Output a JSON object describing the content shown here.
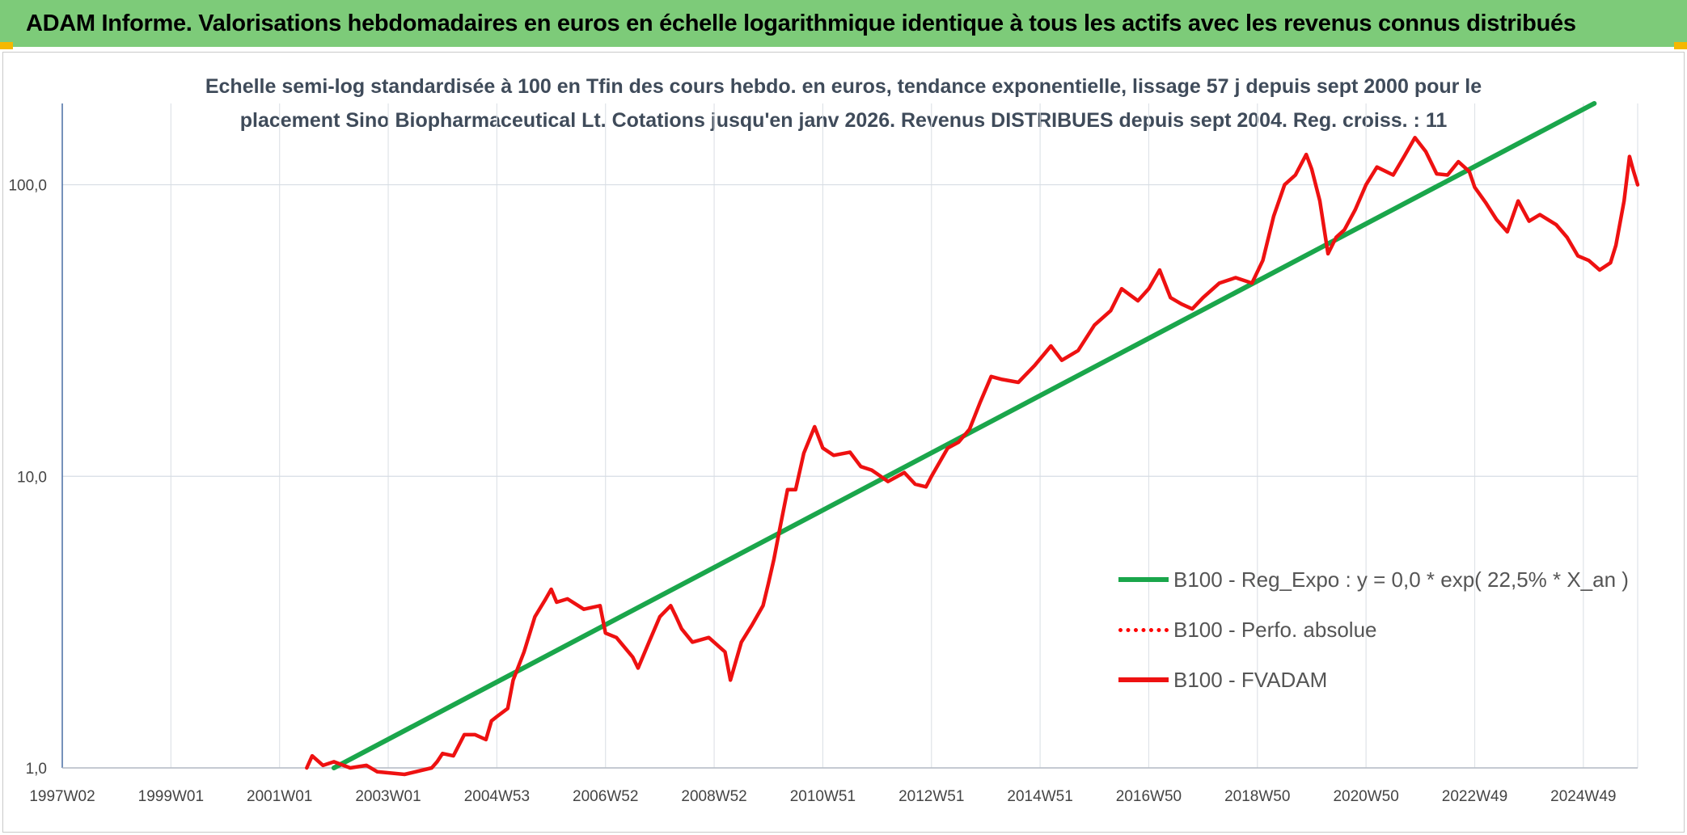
{
  "header": {
    "title": "ADAM Informe. Valorisations hebdomadaires en euros en échelle logarithmique identique à tous les actifs avec les revenus connus distribués"
  },
  "chart_data": {
    "type": "line",
    "title_line1": "Echelle semi-log standardisée à 100 en Tfin des cours hebdo. en euros, tendance exponentielle, lissage 57 j depuis sept 2000 pour le",
    "title_line2": "placement Sino Biopharmaceutical Lt. Cotations jusqu'en janv 2026. Revenus DISTRIBUES depuis sept 2004. Reg. croiss. : 11",
    "y_scale": "log",
    "ylim": [
      1,
      190
    ],
    "y_ticks": [
      {
        "value": 1,
        "label": "1,0"
      },
      {
        "value": 10,
        "label": "10,0"
      },
      {
        "value": 100,
        "label": "100,0"
      }
    ],
    "xlim": [
      1997.0,
      2026.0
    ],
    "x_ticks": [
      {
        "value": 1997.0,
        "label": "1997W02"
      },
      {
        "value": 1999.0,
        "label": "1999W01"
      },
      {
        "value": 2001.0,
        "label": "2001W01"
      },
      {
        "value": 2003.0,
        "label": "2003W01"
      },
      {
        "value": 2005.0,
        "label": "2004W53"
      },
      {
        "value": 2007.0,
        "label": "2006W52"
      },
      {
        "value": 2009.0,
        "label": "2008W52"
      },
      {
        "value": 2011.0,
        "label": "2010W51"
      },
      {
        "value": 2013.0,
        "label": "2012W51"
      },
      {
        "value": 2015.0,
        "label": "2014W51"
      },
      {
        "value": 2017.0,
        "label": "2016W50"
      },
      {
        "value": 2019.0,
        "label": "2018W50"
      },
      {
        "value": 2021.0,
        "label": "2020W50"
      },
      {
        "value": 2023.0,
        "label": "2022W49"
      },
      {
        "value": 2025.0,
        "label": "2024W49"
      }
    ],
    "legend_position": "bottom-right",
    "grid": true,
    "series": [
      {
        "name": "B100 - Reg_Expo : y = 0,0 * exp( 22,5% *  X_an )",
        "color": "#1aa64b",
        "style": "solid",
        "points": [
          [
            2002.0,
            1.0
          ],
          [
            2025.2,
            190.0
          ]
        ]
      },
      {
        "name": "B100 - Perfo. absolue",
        "color": "#ff0000",
        "style": "dotted",
        "points": []
      },
      {
        "name": "B100 - FVADAM",
        "color": "#ee1111",
        "style": "solid",
        "points": [
          [
            2001.5,
            1.0
          ],
          [
            2001.6,
            1.1
          ],
          [
            2001.8,
            1.02
          ],
          [
            2002.0,
            1.05
          ],
          [
            2002.3,
            1.0
          ],
          [
            2002.6,
            1.02
          ],
          [
            2002.8,
            0.97
          ],
          [
            2003.3,
            0.95
          ],
          [
            2003.8,
            1.0
          ],
          [
            2003.9,
            1.05
          ],
          [
            2004.0,
            1.12
          ],
          [
            2004.2,
            1.1
          ],
          [
            2004.4,
            1.3
          ],
          [
            2004.6,
            1.3
          ],
          [
            2004.8,
            1.25
          ],
          [
            2004.9,
            1.45
          ],
          [
            2005.0,
            1.5
          ],
          [
            2005.2,
            1.6
          ],
          [
            2005.3,
            2.0
          ],
          [
            2005.5,
            2.5
          ],
          [
            2005.7,
            3.3
          ],
          [
            2005.9,
            3.8
          ],
          [
            2006.0,
            4.1
          ],
          [
            2006.1,
            3.7
          ],
          [
            2006.3,
            3.8
          ],
          [
            2006.6,
            3.5
          ],
          [
            2006.9,
            3.6
          ],
          [
            2007.0,
            2.9
          ],
          [
            2007.2,
            2.8
          ],
          [
            2007.5,
            2.4
          ],
          [
            2007.6,
            2.2
          ],
          [
            2007.8,
            2.7
          ],
          [
            2008.0,
            3.3
          ],
          [
            2008.2,
            3.6
          ],
          [
            2008.3,
            3.3
          ],
          [
            2008.4,
            3.0
          ],
          [
            2008.6,
            2.7
          ],
          [
            2008.9,
            2.8
          ],
          [
            2009.2,
            2.5
          ],
          [
            2009.3,
            2.0
          ],
          [
            2009.5,
            2.7
          ],
          [
            2009.7,
            3.1
          ],
          [
            2009.9,
            3.6
          ],
          [
            2010.0,
            4.3
          ],
          [
            2010.1,
            5.2
          ],
          [
            2010.2,
            6.5
          ],
          [
            2010.35,
            9.0
          ],
          [
            2010.5,
            9.0
          ],
          [
            2010.65,
            12.0
          ],
          [
            2010.85,
            14.8
          ],
          [
            2011.0,
            12.5
          ],
          [
            2011.2,
            11.8
          ],
          [
            2011.5,
            12.1
          ],
          [
            2011.7,
            10.8
          ],
          [
            2011.9,
            10.5
          ],
          [
            2012.0,
            10.2
          ],
          [
            2012.2,
            9.6
          ],
          [
            2012.5,
            10.3
          ],
          [
            2012.7,
            9.4
          ],
          [
            2012.9,
            9.2
          ],
          [
            2013.0,
            10.0
          ],
          [
            2013.3,
            12.5
          ],
          [
            2013.5,
            13.1
          ],
          [
            2013.7,
            14.5
          ],
          [
            2013.9,
            18.0
          ],
          [
            2014.1,
            22.0
          ],
          [
            2014.3,
            21.5
          ],
          [
            2014.6,
            21.0
          ],
          [
            2014.9,
            24.0
          ],
          [
            2015.2,
            28.0
          ],
          [
            2015.4,
            25.0
          ],
          [
            2015.7,
            27.0
          ],
          [
            2016.0,
            33.0
          ],
          [
            2016.3,
            37.0
          ],
          [
            2016.5,
            44.0
          ],
          [
            2016.8,
            40.0
          ],
          [
            2017.0,
            44.0
          ],
          [
            2017.2,
            51.0
          ],
          [
            2017.4,
            41.0
          ],
          [
            2017.6,
            39.0
          ],
          [
            2017.8,
            37.5
          ],
          [
            2018.0,
            41.0
          ],
          [
            2018.3,
            46.0
          ],
          [
            2018.6,
            48.0
          ],
          [
            2018.9,
            46.0
          ],
          [
            2019.1,
            55.0
          ],
          [
            2019.3,
            78.0
          ],
          [
            2019.5,
            100.0
          ],
          [
            2019.7,
            108.0
          ],
          [
            2019.9,
            127.0
          ],
          [
            2020.0,
            113.0
          ],
          [
            2020.15,
            88.0
          ],
          [
            2020.3,
            58.0
          ],
          [
            2020.45,
            66.0
          ],
          [
            2020.6,
            70.0
          ],
          [
            2020.8,
            82.0
          ],
          [
            2021.0,
            100.0
          ],
          [
            2021.2,
            115.0
          ],
          [
            2021.5,
            108.0
          ],
          [
            2021.7,
            125.0
          ],
          [
            2021.9,
            145.0
          ],
          [
            2022.1,
            130.0
          ],
          [
            2022.3,
            109.0
          ],
          [
            2022.5,
            108.0
          ],
          [
            2022.7,
            120.0
          ],
          [
            2022.9,
            111.0
          ],
          [
            2023.0,
            98.0
          ],
          [
            2023.2,
            87.0
          ],
          [
            2023.4,
            76.0
          ],
          [
            2023.6,
            69.0
          ],
          [
            2023.8,
            88.0
          ],
          [
            2024.0,
            75.0
          ],
          [
            2024.2,
            79.0
          ],
          [
            2024.5,
            73.0
          ],
          [
            2024.7,
            66.0
          ],
          [
            2024.9,
            57.0
          ],
          [
            2025.1,
            55.0
          ],
          [
            2025.3,
            51.0
          ],
          [
            2025.5,
            54.0
          ],
          [
            2025.6,
            62.0
          ],
          [
            2025.75,
            88.0
          ],
          [
            2025.85,
            125.0
          ],
          [
            2025.92,
            112.0
          ],
          [
            2026.0,
            100.0
          ]
        ]
      }
    ]
  }
}
